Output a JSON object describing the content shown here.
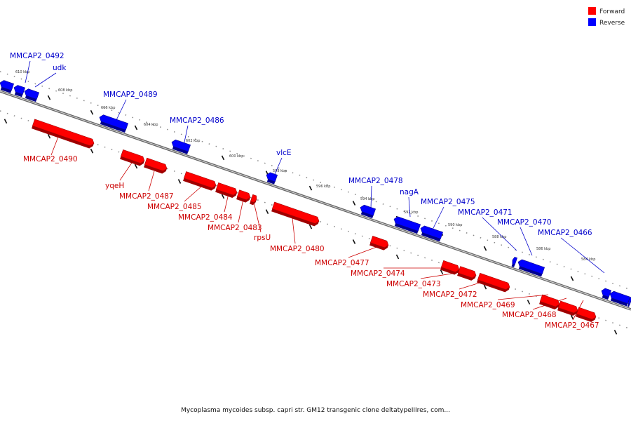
{
  "colors": {
    "forward": "#ff0000",
    "forward_dark": "#a00000",
    "reverse": "#0000ff",
    "reverse_dark": "#000090",
    "forward_label": "#cc0000",
    "reverse_label": "#0000cc",
    "backbone": "#777777"
  },
  "legend": {
    "forward_label": "Forward",
    "reverse_label": "Reverse"
  },
  "caption": "Mycoplasma mycoides subsp. capri str. GM12 transgenic clone deltatypeIIIres, com...",
  "tick_labels": [
    "610 kbp",
    "608 kbp",
    "606 kbp",
    "604 kbp",
    "602 kbp",
    "600 kbp",
    "598 kbp",
    "596 kbp",
    "594 kbp",
    "592 kbp",
    "590 kbp",
    "588 kbp",
    "586 kbp",
    "584 kbp"
  ],
  "forward_genes": [
    "MMCAP2_0490",
    "yqeH",
    "MMCAP2_0487",
    "MMCAP2_0485",
    "MMCAP2_0484",
    "MMCAP2_0483",
    "rpsU",
    "MMCAP2_0480",
    "MMCAP2_0477",
    "MMCAP2_0474",
    "MMCAP2_0473",
    "MMCAP2_0472",
    "MMCAP2_0469",
    "MMCAP2_0468",
    "MMCAP2_0467"
  ],
  "reverse_genes": [
    "MMCAP2_0492",
    "udk",
    "MMCAP2_0489",
    "MMCAP2_0486",
    "vlcE",
    "MMCAP2_0478",
    "nagA",
    "MMCAP2_0475",
    "MMCAP2_0471",
    "MMCAP2_0470",
    "MMCAP2_0466"
  ]
}
